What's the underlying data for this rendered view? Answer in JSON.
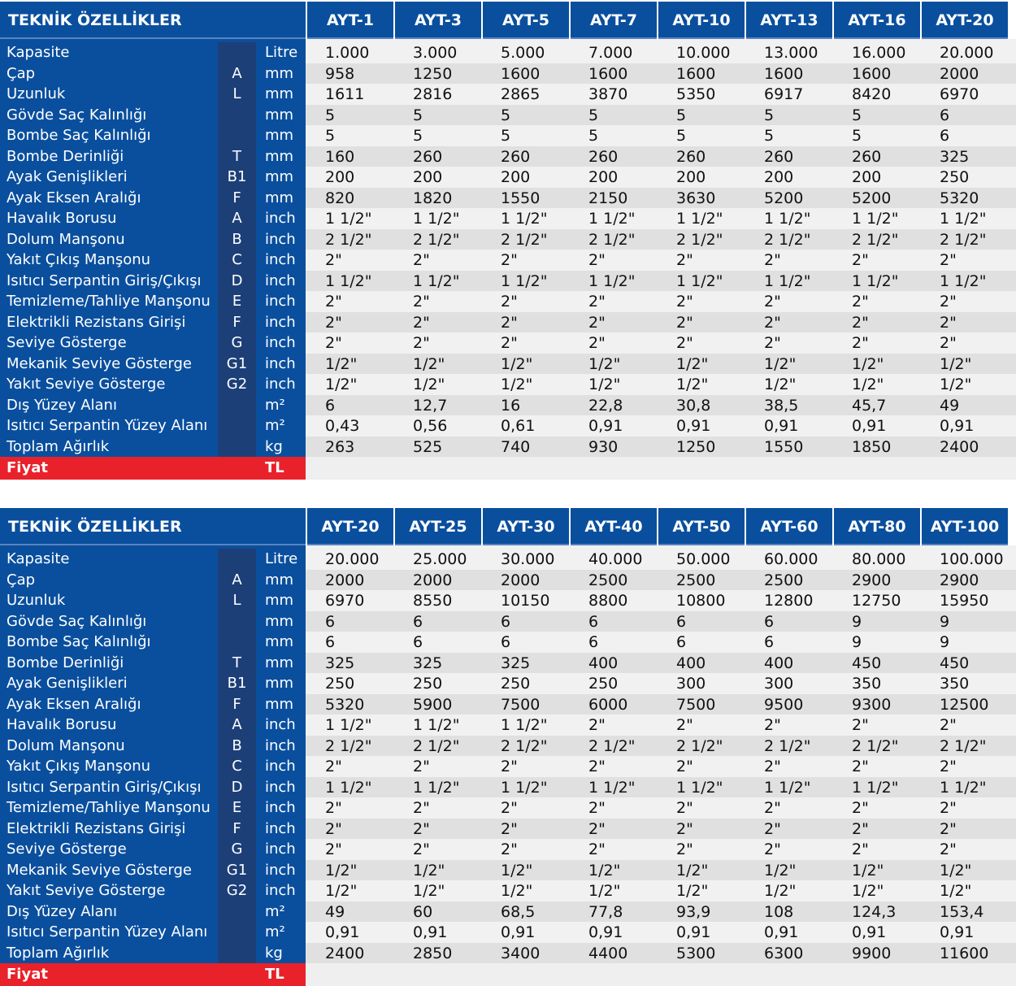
{
  "header_title": "TEKNİK ÖZELLİKLER",
  "price_label": "Fiyat",
  "price_unit": "TL",
  "spec_rows": [
    {
      "label": "Kapasite",
      "code": "",
      "unit": "Litre"
    },
    {
      "label": "Çap",
      "code": "A",
      "unit": "mm"
    },
    {
      "label": "Uzunluk",
      "code": "L",
      "unit": "mm"
    },
    {
      "label": "Gövde Saç Kalınlığı",
      "code": "",
      "unit": "mm"
    },
    {
      "label": "Bombe Saç Kalınlığı",
      "code": "",
      "unit": "mm"
    },
    {
      "label": "Bombe Derinliği",
      "code": "T",
      "unit": "mm"
    },
    {
      "label": "Ayak Genişlikleri",
      "code": "B1",
      "unit": "mm"
    },
    {
      "label": "Ayak Eksen Aralığı",
      "code": "F",
      "unit": "mm"
    },
    {
      "label": "Havalık Borusu",
      "code": "A",
      "unit": "inch"
    },
    {
      "label": "Dolum Manşonu",
      "code": "B",
      "unit": "inch"
    },
    {
      "label": "Yakıt Çıkış Manşonu",
      "code": "C",
      "unit": "inch"
    },
    {
      "label": "Isıtıcı Serpantin Giriş/Çıkışı",
      "code": "D",
      "unit": "inch"
    },
    {
      "label": "Temizleme/Tahliye Manşonu",
      "code": "E",
      "unit": "inch"
    },
    {
      "label": "Elektrikli Rezistans Girişi",
      "code": "F",
      "unit": "inch"
    },
    {
      "label": "Seviye Gösterge",
      "code": "G",
      "unit": "inch"
    },
    {
      "label": "Mekanik Seviye Gösterge",
      "code": "G1",
      "unit": "inch"
    },
    {
      "label": "Yakıt Seviye Gösterge",
      "code": "G2",
      "unit": "inch"
    },
    {
      "label": "Dış Yüzey Alanı",
      "code": "",
      "unit": "m²"
    },
    {
      "label": "Isıtıcı Serpantin Yüzey Alanı",
      "code": "",
      "unit": "m²"
    },
    {
      "label": "Toplam Ağırlık",
      "code": "",
      "unit": "kg"
    }
  ],
  "tables": [
    {
      "models": [
        "AYT-1",
        "AYT-3",
        "AYT-5",
        "AYT-7",
        "AYT-10",
        "AYT-13",
        "AYT-16",
        "AYT-20"
      ],
      "values": [
        [
          "1.000",
          "3.000",
          "5.000",
          "7.000",
          "10.000",
          "13.000",
          "16.000",
          "20.000"
        ],
        [
          "958",
          "1250",
          "1600",
          "1600",
          "1600",
          "1600",
          "1600",
          "2000"
        ],
        [
          "1611",
          "2816",
          "2865",
          "3870",
          "5350",
          "6917",
          "8420",
          "6970"
        ],
        [
          "5",
          "5",
          "5",
          "5",
          "5",
          "5",
          "5",
          "6"
        ],
        [
          "5",
          "5",
          "5",
          "5",
          "5",
          "5",
          "5",
          "6"
        ],
        [
          "160",
          "260",
          "260",
          "260",
          "260",
          "260",
          "260",
          "325"
        ],
        [
          "200",
          "200",
          "200",
          "200",
          "200",
          "200",
          "200",
          "250"
        ],
        [
          "820",
          "1820",
          "1550",
          "2150",
          "3630",
          "5200",
          "5200",
          "5320"
        ],
        [
          "1 1/2\"",
          "1 1/2\"",
          "1 1/2\"",
          "1 1/2\"",
          "1 1/2\"",
          "1 1/2\"",
          "1 1/2\"",
          "1 1/2\""
        ],
        [
          "2 1/2\"",
          "2 1/2\"",
          "2 1/2\"",
          "2 1/2\"",
          "2 1/2\"",
          "2 1/2\"",
          "2 1/2\"",
          "2 1/2\""
        ],
        [
          "2\"",
          "2\"",
          "2\"",
          "2\"",
          "2\"",
          "2\"",
          "2\"",
          "2\""
        ],
        [
          "1 1/2\"",
          "1 1/2\"",
          "1 1/2\"",
          "1 1/2\"",
          "1 1/2\"",
          "1 1/2\"",
          "1 1/2\"",
          "1 1/2\""
        ],
        [
          "2\"",
          "2\"",
          "2\"",
          "2\"",
          "2\"",
          "2\"",
          "2\"",
          "2\""
        ],
        [
          "2\"",
          "2\"",
          "2\"",
          "2\"",
          "2\"",
          "2\"",
          "2\"",
          "2\""
        ],
        [
          "2\"",
          "2\"",
          "2\"",
          "2\"",
          "2\"",
          "2\"",
          "2\"",
          "2\""
        ],
        [
          "1/2\"",
          "1/2\"",
          "1/2\"",
          "1/2\"",
          "1/2\"",
          "1/2\"",
          "1/2\"",
          "1/2\""
        ],
        [
          "1/2\"",
          "1/2\"",
          "1/2\"",
          "1/2\"",
          "1/2\"",
          "1/2\"",
          "1/2\"",
          "1/2\""
        ],
        [
          "6",
          "12,7",
          "16",
          "22,8",
          "30,8",
          "38,5",
          "45,7",
          "49"
        ],
        [
          "0,43",
          "0,56",
          "0,61",
          "0,91",
          "0,91",
          "0,91",
          "0,91",
          "0,91"
        ],
        [
          "263",
          "525",
          "740",
          "930",
          "1250",
          "1550",
          "1850",
          "2400"
        ]
      ]
    },
    {
      "models": [
        "AYT-20",
        "AYT-25",
        "AYT-30",
        "AYT-40",
        "AYT-50",
        "AYT-60",
        "AYT-80",
        "AYT-100"
      ],
      "values": [
        [
          "20.000",
          "25.000",
          "30.000",
          "40.000",
          "50.000",
          "60.000",
          "80.000",
          "100.000"
        ],
        [
          "2000",
          "2000",
          "2000",
          "2500",
          "2500",
          "2500",
          "2900",
          "2900"
        ],
        [
          "6970",
          "8550",
          "10150",
          "8800",
          "10800",
          "12800",
          "12750",
          "15950"
        ],
        [
          "6",
          "6",
          "6",
          "6",
          "6",
          "6",
          "9",
          "9"
        ],
        [
          "6",
          "6",
          "6",
          "6",
          "6",
          "6",
          "9",
          "9"
        ],
        [
          "325",
          "325",
          "325",
          "400",
          "400",
          "400",
          "450",
          "450"
        ],
        [
          "250",
          "250",
          "250",
          "250",
          "300",
          "300",
          "350",
          "350"
        ],
        [
          "5320",
          "5900",
          "7500",
          "6000",
          "7500",
          "9500",
          "9300",
          "12500"
        ],
        [
          "1 1/2\"",
          "1 1/2\"",
          "1 1/2\"",
          "2\"",
          "2\"",
          "2\"",
          "2\"",
          "2\""
        ],
        [
          "2 1/2\"",
          "2 1/2\"",
          "2 1/2\"",
          "2 1/2\"",
          "2 1/2\"",
          "2 1/2\"",
          "2 1/2\"",
          "2 1/2\""
        ],
        [
          "2\"",
          "2\"",
          "2\"",
          "2\"",
          "2\"",
          "2\"",
          "2\"",
          "2\""
        ],
        [
          "1 1/2\"",
          "1 1/2\"",
          "1 1/2\"",
          "1 1/2\"",
          "1 1/2\"",
          "1 1/2\"",
          "1 1/2\"",
          "1 1/2\""
        ],
        [
          "2\"",
          "2\"",
          "2\"",
          "2\"",
          "2\"",
          "2\"",
          "2\"",
          "2\""
        ],
        [
          "2\"",
          "2\"",
          "2\"",
          "2\"",
          "2\"",
          "2\"",
          "2\"",
          "2\""
        ],
        [
          "2\"",
          "2\"",
          "2\"",
          "2\"",
          "2\"",
          "2\"",
          "2\"",
          "2\""
        ],
        [
          "1/2\"",
          "1/2\"",
          "1/2\"",
          "1/2\"",
          "1/2\"",
          "1/2\"",
          "1/2\"",
          "1/2\""
        ],
        [
          "1/2\"",
          "1/2\"",
          "1/2\"",
          "1/2\"",
          "1/2\"",
          "1/2\"",
          "1/2\"",
          "1/2\""
        ],
        [
          "49",
          "60",
          "68,5",
          "77,8",
          "93,9",
          "108",
          "124,3",
          "153,4"
        ],
        [
          "0,91",
          "0,91",
          "0,91",
          "0,91",
          "0,91",
          "0,91",
          "0,91",
          "0,91"
        ],
        [
          "2400",
          "2850",
          "3400",
          "4400",
          "5300",
          "6300",
          "9900",
          "11600"
        ]
      ]
    }
  ]
}
